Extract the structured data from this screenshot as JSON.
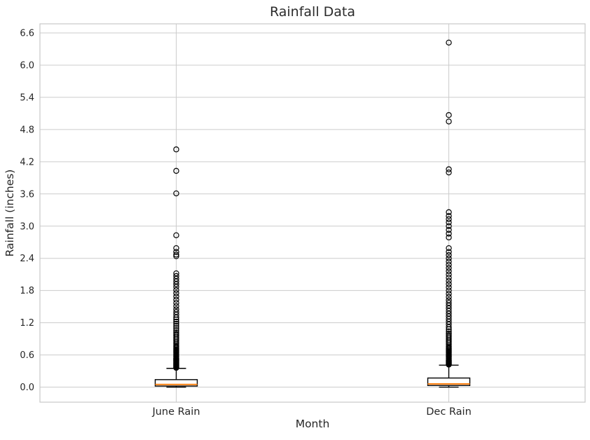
{
  "chart_data": {
    "type": "boxplot",
    "title": "Rainfall Data",
    "xlabel": "Month",
    "ylabel": "Rainfall (inches)",
    "categories": [
      "June Rain",
      "Dec Rain"
    ],
    "positions": [
      1,
      2
    ],
    "xlim": [
      0.5,
      2.5
    ],
    "ylim": [
      -0.28,
      6.77
    ],
    "yticks": [
      0.0,
      0.6,
      1.2,
      1.8,
      2.4,
      3.0,
      3.6,
      4.2,
      4.8,
      5.4,
      6.0,
      6.6
    ],
    "ytick_labels": [
      "0.0",
      "0.6",
      "1.2",
      "1.8",
      "2.4",
      "3.0",
      "3.6",
      "4.2",
      "4.8",
      "5.4",
      "6.0",
      "6.6"
    ],
    "grid": true,
    "legend": false,
    "colors": {
      "box_edge": "#000000",
      "box_fill": "#ffffff",
      "median": "#ff7f0e",
      "grid": "#cccccc",
      "border": "#c8c8c8",
      "text": "#262626",
      "background": "#ffffff"
    },
    "series": [
      {
        "name": "June Rain",
        "whisker_low": 0.0,
        "q1": 0.02,
        "median": 0.05,
        "q3": 0.14,
        "whisker_high": 0.35,
        "outliers": [
          4.43,
          4.03,
          3.61,
          2.83,
          2.59,
          2.52,
          2.47,
          2.44,
          2.12,
          2.07,
          2.02,
          1.97,
          1.92,
          1.87,
          1.81,
          1.75,
          1.69,
          1.63,
          1.57,
          1.51,
          1.45,
          1.4,
          1.35,
          1.3,
          1.26,
          1.22,
          1.18,
          1.14,
          1.1,
          1.06,
          1.02,
          0.99,
          0.96,
          0.93,
          0.9,
          0.87,
          0.84,
          0.81,
          0.78,
          0.76,
          0.74,
          0.72,
          0.7,
          0.68,
          0.66,
          0.64,
          0.62,
          0.6,
          0.58,
          0.56,
          0.54,
          0.53,
          0.52,
          0.51,
          0.5,
          0.49,
          0.48,
          0.47,
          0.46,
          0.45,
          0.44,
          0.43,
          0.42,
          0.41,
          0.4,
          0.39,
          0.38,
          0.37,
          0.36
        ]
      },
      {
        "name": "Dec Rain",
        "whisker_low": 0.0,
        "q1": 0.03,
        "median": 0.06,
        "q3": 0.17,
        "whisker_high": 0.41,
        "outliers": [
          6.42,
          5.07,
          4.95,
          4.06,
          4.0,
          3.26,
          3.19,
          3.13,
          3.07,
          3.0,
          2.93,
          2.86,
          2.79,
          2.59,
          2.52,
          2.46,
          2.4,
          2.34,
          2.28,
          2.22,
          2.16,
          2.1,
          2.04,
          1.98,
          1.92,
          1.86,
          1.8,
          1.74,
          1.68,
          1.62,
          1.57,
          1.52,
          1.47,
          1.42,
          1.37,
          1.32,
          1.27,
          1.22,
          1.17,
          1.12,
          1.08,
          1.04,
          1.0,
          0.97,
          0.94,
          0.91,
          0.88,
          0.85,
          0.82,
          0.79,
          0.76,
          0.74,
          0.72,
          0.7,
          0.68,
          0.66,
          0.64,
          0.62,
          0.6,
          0.58,
          0.56,
          0.54,
          0.52,
          0.5,
          0.49,
          0.48,
          0.47,
          0.46,
          0.45,
          0.44,
          0.43,
          0.42
        ]
      }
    ]
  }
}
